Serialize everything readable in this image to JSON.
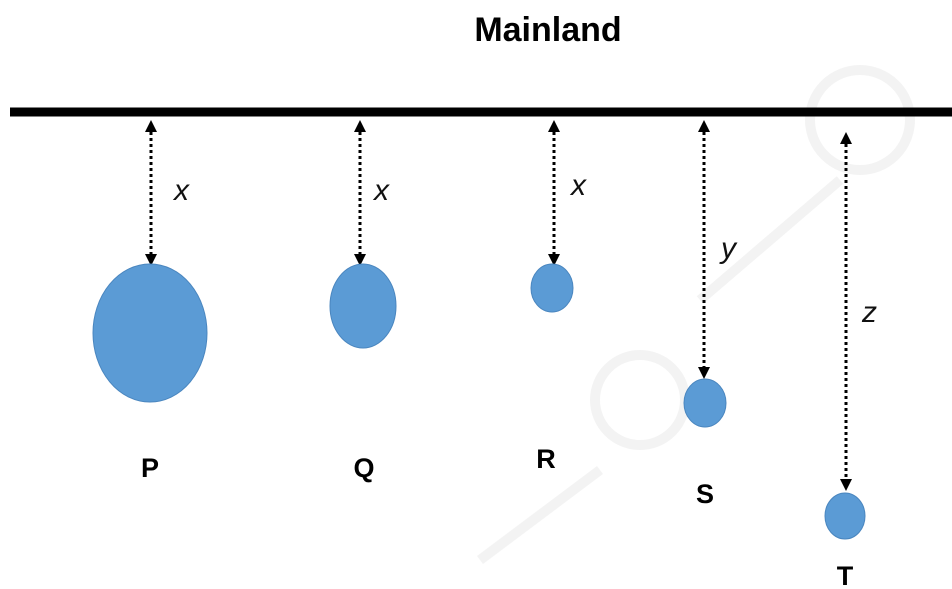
{
  "title": "Mainland",
  "islands": [
    {
      "label": "P",
      "distance_label": "x"
    },
    {
      "label": "Q",
      "distance_label": "x"
    },
    {
      "label": "R",
      "distance_label": "x"
    },
    {
      "label": "S",
      "distance_label": "y"
    },
    {
      "label": "T",
      "distance_label": "z"
    }
  ],
  "colors": {
    "island": "#5b9bd5",
    "mainland": "#000000"
  }
}
